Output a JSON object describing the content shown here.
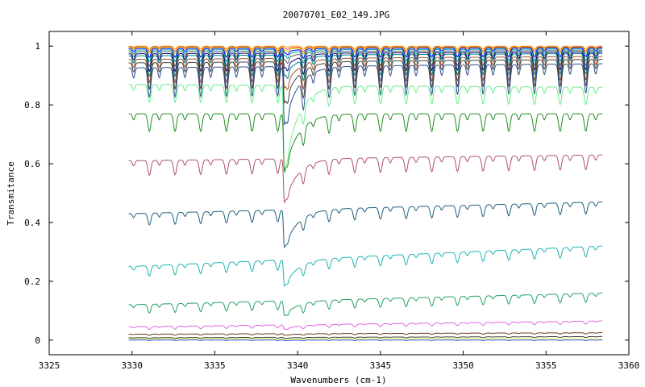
{
  "chart_data": {
    "type": "line",
    "title": "20070701_E02_149.JPG",
    "xlabel": "Wavenumbers (cm-1)",
    "ylabel": "Transmitance",
    "xlim": [
      3325,
      3360
    ],
    "ylim": [
      -0.05,
      1.05
    ],
    "x_ticks": [
      "3325",
      "3330",
      "3335",
      "3340",
      "3345",
      "3350",
      "3355",
      "3360"
    ],
    "y_ticks": [
      "0",
      "0.2",
      "0.4",
      "0.6",
      "0.8",
      "1"
    ],
    "grid": false,
    "legend": "none",
    "x_range": [
      3329.8,
      3358.4
    ],
    "line_spacing_cm1": 1.55,
    "line_offset_cm1": 3331.05,
    "main_feature_cm1": 3339.2,
    "series": [
      {
        "baseline": 1.0,
        "tilt": 0.0,
        "depth": 0.01,
        "feature": 0.0,
        "color": "#ffa500"
      },
      {
        "baseline": 0.998,
        "tilt": 0.0,
        "depth": 0.015,
        "feature": 0.005,
        "color": "#ff4040"
      },
      {
        "baseline": 0.996,
        "tilt": 0.0,
        "depth": 0.02,
        "feature": 0.01,
        "color": "#c0c000"
      },
      {
        "baseline": 0.994,
        "tilt": -0.002,
        "depth": 0.03,
        "feature": 0.015,
        "color": "#0000ff"
      },
      {
        "baseline": 0.99,
        "tilt": -0.003,
        "depth": 0.04,
        "feature": 0.02,
        "color": "#00a0a0"
      },
      {
        "baseline": 0.985,
        "tilt": -0.004,
        "depth": 0.05,
        "feature": 0.03,
        "color": "#606060"
      },
      {
        "baseline": 0.98,
        "tilt": -0.006,
        "depth": 0.06,
        "feature": 0.05,
        "color": "#000080"
      },
      {
        "baseline": 0.975,
        "tilt": -0.008,
        "depth": 0.07,
        "feature": 0.07,
        "color": "#008080"
      },
      {
        "baseline": 0.965,
        "tilt": -0.01,
        "depth": 0.08,
        "feature": 0.1,
        "color": "#a0522d"
      },
      {
        "baseline": 0.955,
        "tilt": -0.012,
        "depth": 0.09,
        "feature": 0.14,
        "color": "#404040"
      },
      {
        "baseline": 0.94,
        "tilt": -0.014,
        "depth": 0.1,
        "feature": 0.2,
        "color": "#2f4f8f"
      },
      {
        "baseline": 0.86,
        "tilt": 0.01,
        "depth": 0.06,
        "feature": 0.3,
        "color": "#66ee88"
      },
      {
        "baseline": 0.77,
        "tilt": 0.0,
        "depth": 0.06,
        "feature": 0.2,
        "color": "#228b22"
      },
      {
        "baseline": 0.63,
        "tilt": -0.02,
        "depth": 0.05,
        "feature": 0.15,
        "color": "#b05070"
      },
      {
        "baseline": 0.47,
        "tilt": -0.04,
        "depth": 0.04,
        "feature": 0.13,
        "color": "#1f5f7f"
      },
      {
        "baseline": 0.32,
        "tilt": -0.07,
        "depth": 0.035,
        "feature": 0.09,
        "color": "#20b2b2"
      },
      {
        "baseline": 0.16,
        "tilt": -0.04,
        "depth": 0.03,
        "feature": 0.05,
        "color": "#20a060"
      },
      {
        "baseline": 0.065,
        "tilt": -0.02,
        "depth": 0.01,
        "feature": 0.015,
        "color": "#e066e0"
      },
      {
        "baseline": 0.025,
        "tilt": -0.005,
        "depth": 0.004,
        "feature": 0.005,
        "color": "#6b3a1e"
      },
      {
        "baseline": 0.012,
        "tilt": -0.004,
        "depth": 0.003,
        "feature": 0.003,
        "color": "#404040"
      },
      {
        "baseline": 0.004,
        "tilt": 0.0,
        "depth": 0.002,
        "feature": 0.002,
        "color": "#e0e040"
      },
      {
        "baseline": 0.0,
        "tilt": 0.0,
        "depth": 0.002,
        "feature": 0.002,
        "color": "#4060ff"
      }
    ]
  }
}
